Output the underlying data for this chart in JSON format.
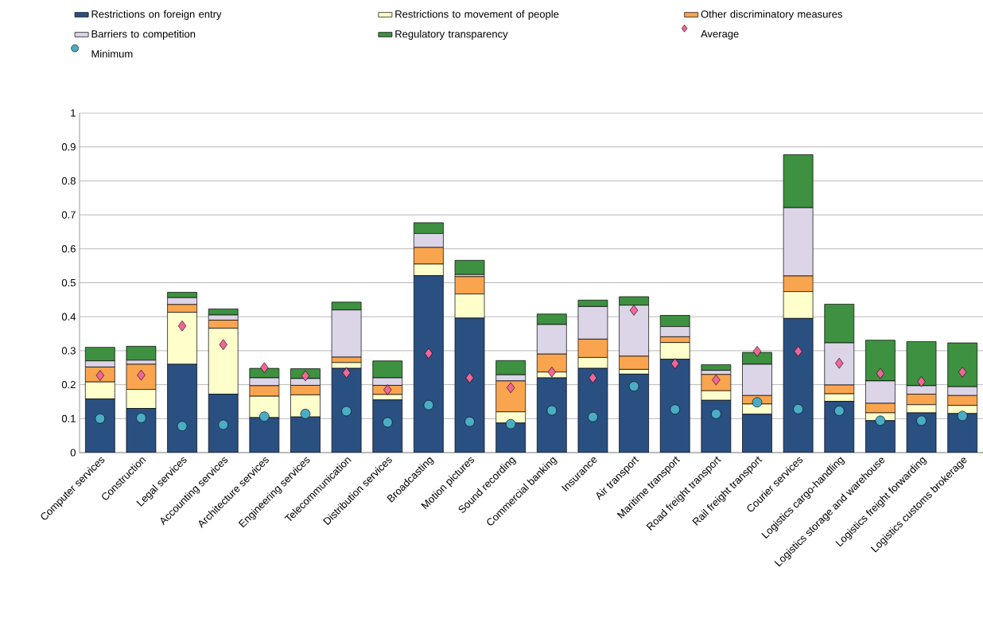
{
  "chart_data": {
    "type": "bar",
    "stacked": true,
    "grid": "y",
    "legend": "top",
    "categories": [
      "Computer services",
      "Construction",
      "Legal services",
      "Accounting services",
      "Architecture services",
      "Engineering services",
      "Telecommunication",
      "Distribution services",
      "Broadcasting",
      "Motion pictures",
      "Sound recording",
      "Commercial banking",
      "Insurance",
      "Air transport",
      "Maritime transport",
      "Road freight transport",
      "Rail freight transport",
      "Courier services",
      "Logistics cargo-handling",
      "Logistics storage and warehouse",
      "Logistics freight forwarding",
      "Logistics customs brokerage"
    ],
    "ylim": [
      0,
      1
    ],
    "yticks": [
      0,
      0.1,
      0.2,
      0.3,
      0.4,
      0.5,
      0.6,
      0.7,
      0.8,
      0.9,
      1
    ],
    "series": [
      {
        "name": "Restrictions on foreign entry",
        "color": "#2a5082",
        "values": [
          0.158,
          0.13,
          0.26,
          0.172,
          0.103,
          0.105,
          0.248,
          0.155,
          0.521,
          0.396,
          0.087,
          0.22,
          0.248,
          0.231,
          0.275,
          0.154,
          0.113,
          0.395,
          0.151,
          0.094,
          0.117,
          0.115
        ]
      },
      {
        "name": "Restrictions to movement of people",
        "color": "#ffffcc",
        "values": [
          0.05,
          0.056,
          0.153,
          0.194,
          0.063,
          0.065,
          0.017,
          0.016,
          0.034,
          0.071,
          0.033,
          0.017,
          0.032,
          0.014,
          0.049,
          0.028,
          0.03,
          0.079,
          0.022,
          0.023,
          0.024,
          0.024
        ]
      },
      {
        "name": "Other discriminatory measures",
        "color": "#f9a54f",
        "values": [
          0.044,
          0.074,
          0.023,
          0.024,
          0.031,
          0.028,
          0.016,
          0.027,
          0.049,
          0.051,
          0.091,
          0.053,
          0.054,
          0.039,
          0.017,
          0.048,
          0.025,
          0.046,
          0.026,
          0.028,
          0.031,
          0.029
        ]
      },
      {
        "name": "Barriers to competition",
        "color": "#dcd5e8",
        "values": [
          0.018,
          0.012,
          0.02,
          0.015,
          0.023,
          0.02,
          0.139,
          0.022,
          0.041,
          0.006,
          0.018,
          0.087,
          0.096,
          0.15,
          0.03,
          0.012,
          0.092,
          0.201,
          0.124,
          0.066,
          0.025,
          0.026
        ]
      },
      {
        "name": "Regulatory transparency",
        "color": "#3d9140",
        "values": [
          0.04,
          0.041,
          0.016,
          0.018,
          0.028,
          0.029,
          0.023,
          0.05,
          0.032,
          0.042,
          0.042,
          0.031,
          0.019,
          0.025,
          0.033,
          0.017,
          0.035,
          0.156,
          0.114,
          0.12,
          0.13,
          0.129
        ]
      },
      {
        "name": "Average",
        "type": "scatter",
        "marker": "diamond",
        "color": "#f0669a",
        "x": [
          "Computer services",
          "Construction",
          "Legal services",
          "Accounting services",
          "Architecture services",
          "Engineering services",
          "Telecommunication",
          "Distribution services",
          "Broadcasting",
          "Motion pictures",
          "Sound recording",
          "Commercial banking",
          "Insurance",
          "Air transport",
          "Maritime transport",
          "Road freight transport",
          "Rail freight transport",
          "Courier services",
          "Logistics cargo-handling",
          "Logistics storage and warehouse",
          "Logistics freight forwarding",
          "Logistics customs brokerage"
        ],
        "values": [
          0.227,
          0.228,
          0.373,
          0.318,
          0.25,
          0.226,
          0.235,
          0.185,
          0.292,
          0.22,
          0.191,
          0.237,
          0.22,
          0.419,
          0.262,
          0.214,
          0.298,
          0.298,
          0.263,
          0.233,
          0.209,
          0.237
        ]
      },
      {
        "name": "Minimum",
        "type": "scatter",
        "marker": "circle",
        "color": "#4bacc6",
        "x": [
          "Computer services",
          "Construction",
          "Legal services",
          "Accounting services",
          "Architecture services",
          "Engineering services",
          "Telecommunication",
          "Distribution services",
          "Broadcasting",
          "Motion pictures",
          "Sound recording",
          "Commercial banking",
          "Insurance",
          "Air transport",
          "Maritime transport",
          "Road freight transport",
          "Rail freight transport",
          "Courier services",
          "Logistics cargo-handling",
          "Logistics storage and warehouse",
          "Logistics freight forwarding",
          "Logistics customs brokerage"
        ],
        "values": [
          0.1,
          0.102,
          0.078,
          0.082,
          0.106,
          0.114,
          0.122,
          0.089,
          0.14,
          0.091,
          0.084,
          0.124,
          0.105,
          0.195,
          0.127,
          0.114,
          0.148,
          0.128,
          0.123,
          0.094,
          0.094,
          0.108
        ]
      }
    ]
  }
}
